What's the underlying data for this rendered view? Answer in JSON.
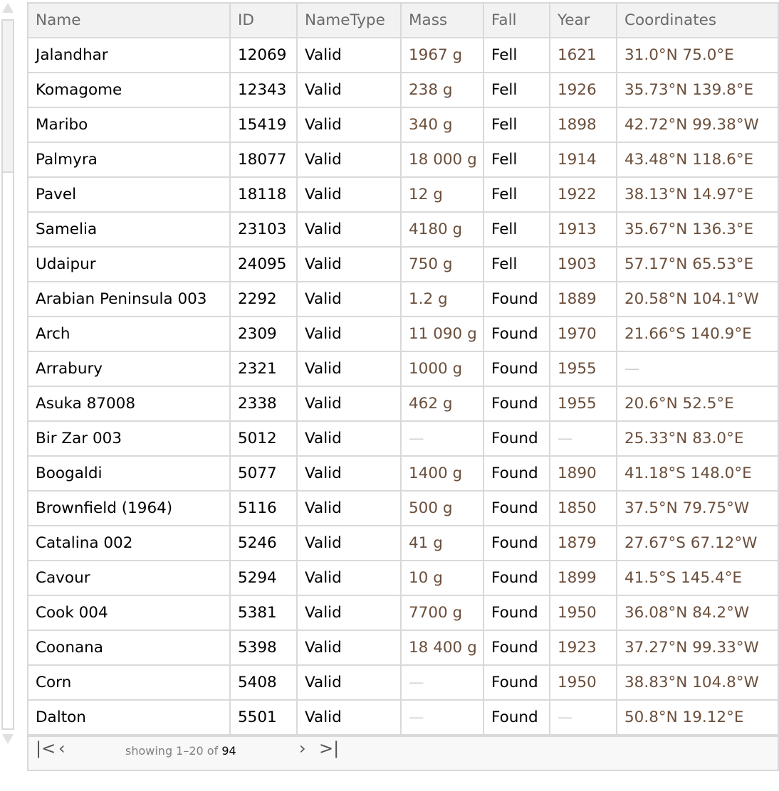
{
  "columns": [
    "Name",
    "ID",
    "NameType",
    "Mass",
    "Fall",
    "Year",
    "Coordinates"
  ],
  "rows": [
    [
      "Jalandhar",
      "12069",
      "Valid",
      "1967 g",
      "Fell",
      "1621",
      "31.0°N 75.0°E"
    ],
    [
      "Komagome",
      "12343",
      "Valid",
      "238 g",
      "Fell",
      "1926",
      "35.73°N 139.8°E"
    ],
    [
      "Maribo",
      "15419",
      "Valid",
      "340 g",
      "Fell",
      "1898",
      "42.72°N 99.38°W"
    ],
    [
      "Palmyra",
      "18077",
      "Valid",
      "18 000 g",
      "Fell",
      "1914",
      "43.48°N 118.6°E"
    ],
    [
      "Pavel",
      "18118",
      "Valid",
      "12 g",
      "Fell",
      "1922",
      "38.13°N 14.97°E"
    ],
    [
      "Samelia",
      "23103",
      "Valid",
      "4180 g",
      "Fell",
      "1913",
      "35.67°N 136.3°E"
    ],
    [
      "Udaipur",
      "24095",
      "Valid",
      "750 g",
      "Fell",
      "1903",
      "57.17°N 65.53°E"
    ],
    [
      "Arabian Peninsula 003",
      "2292",
      "Valid",
      "1.2 g",
      "Found",
      "1889",
      "20.58°N 104.1°W"
    ],
    [
      "Arch",
      "2309",
      "Valid",
      "11 090 g",
      "Found",
      "1970",
      "21.66°S 140.9°E"
    ],
    [
      "Arrabury",
      "2321",
      "Valid",
      "1000 g",
      "Found",
      "1955",
      "—"
    ],
    [
      "Asuka 87008",
      "2338",
      "Valid",
      "462 g",
      "Found",
      "1955",
      "20.6°N 52.5°E"
    ],
    [
      "Bir Zar 003",
      "5012",
      "Valid",
      "—",
      "Found",
      "—",
      "25.33°N 83.0°E"
    ],
    [
      "Boogaldi",
      "5077",
      "Valid",
      "1400 g",
      "Found",
      "1890",
      "41.18°S 148.0°E"
    ],
    [
      "Brownfield (1964)",
      "5116",
      "Valid",
      "500 g",
      "Found",
      "1850",
      "37.5°N 79.75°W"
    ],
    [
      "Catalina 002",
      "5246",
      "Valid",
      "41 g",
      "Found",
      "1879",
      "27.67°S 67.12°W"
    ],
    [
      "Cavour",
      "5294",
      "Valid",
      "10 g",
      "Found",
      "1899",
      "41.5°S 145.4°E"
    ],
    [
      "Cook 004",
      "5381",
      "Valid",
      "7700 g",
      "Found",
      "1950",
      "36.08°N 84.2°W"
    ],
    [
      "Coonana",
      "5398",
      "Valid",
      "18 400 g",
      "Found",
      "1923",
      "37.27°N 99.33°W"
    ],
    [
      "Corn",
      "5408",
      "Valid",
      "—",
      "Found",
      "1950",
      "38.83°N 104.8°W"
    ],
    [
      "Dalton",
      "5501",
      "Valid",
      "—",
      "Found",
      "—",
      "50.8°N 19.12°E"
    ]
  ],
  "footer": {
    "first_icon": "first-page-icon",
    "prev_icon": "previous-page-icon",
    "next_icon": "next-page-icon",
    "last_icon": "last-page-icon",
    "status_prefix": "showing 1–20 of",
    "total": "94"
  },
  "colors": {
    "quantity_text": "#6b4f3c",
    "header_bg": "#f2f2f2",
    "border": "#d9d9d9"
  }
}
